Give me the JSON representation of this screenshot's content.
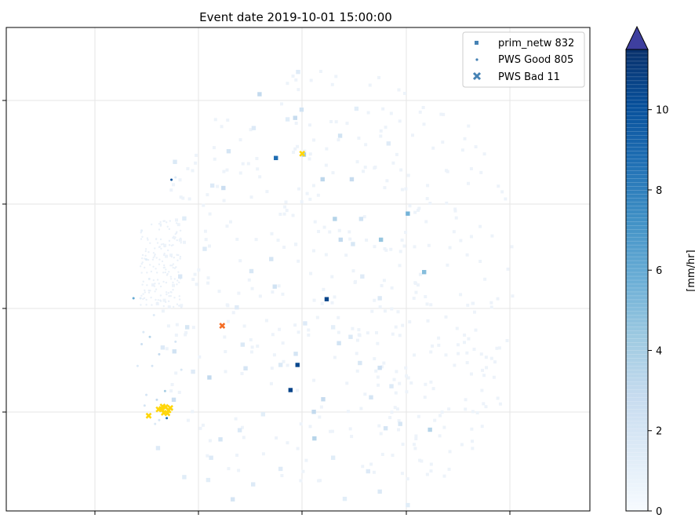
{
  "chart_data": {
    "type": "scatter",
    "title": "Event date 2019-10-01 15:00:00",
    "xlabel": "",
    "ylabel": "",
    "grid": true,
    "axis_ticks_labeled": false,
    "legend": {
      "placement": "top-right",
      "entries": [
        {
          "label": "prim_netw 832",
          "marker": "square",
          "color": "#4682b4"
        },
        {
          "label": "PWS Good 805",
          "marker": "dot",
          "color": "#4682b4"
        },
        {
          "label": "PWS Bad 11",
          "marker": "x",
          "color": "#4682b4"
        }
      ]
    },
    "colorbar": {
      "label": "[mm/hr]",
      "range": [
        0,
        11.5
      ],
      "ticks": [
        0,
        2,
        4,
        6,
        8,
        10
      ],
      "tick_labels": [
        "0",
        "2",
        "4",
        "6",
        "8",
        "10"
      ],
      "extend": "max",
      "colormap": [
        "#f7fbff",
        "#deebf7",
        "#c6dbef",
        "#9ecae1",
        "#6baed6",
        "#4292c6",
        "#2171b5",
        "#08519c",
        "#08306b"
      ],
      "over_color": "#3e3f9f"
    },
    "series": [
      {
        "name": "prim_netw 832",
        "marker": "square",
        "points": [
          [
            0.434,
            0.138,
            3.0
          ],
          [
            0.424,
            0.208,
            1.5
          ],
          [
            0.381,
            0.256,
            2.0
          ],
          [
            0.506,
            0.17,
            2.2
          ],
          [
            0.495,
            0.187,
            2.8
          ],
          [
            0.572,
            0.224,
            2.2
          ],
          [
            0.462,
            0.27,
            8.8
          ],
          [
            0.51,
            0.263,
            4.0
          ],
          [
            0.542,
            0.314,
            3.2
          ],
          [
            0.592,
            0.314,
            2.8
          ],
          [
            0.688,
            0.385,
            5.5
          ],
          [
            0.372,
            0.332,
            2.6
          ],
          [
            0.563,
            0.396,
            3.5
          ],
          [
            0.608,
            0.396,
            2.2
          ],
          [
            0.573,
            0.439,
            3.0
          ],
          [
            0.642,
            0.439,
            4.5
          ],
          [
            0.594,
            0.448,
            1.8
          ],
          [
            0.454,
            0.479,
            2.0
          ],
          [
            0.716,
            0.506,
            5.0
          ],
          [
            0.42,
            0.504,
            1.8
          ],
          [
            0.549,
            0.562,
            10.6
          ],
          [
            0.512,
            0.612,
            1.5
          ],
          [
            0.57,
            0.653,
            2.2
          ],
          [
            0.496,
            0.675,
            2.0
          ],
          [
            0.499,
            0.698,
            10.5
          ],
          [
            0.487,
            0.75,
            10.6
          ],
          [
            0.543,
            0.769,
            2.8
          ],
          [
            0.527,
            0.795,
            3.0
          ],
          [
            0.726,
            0.832,
            3.5
          ],
          [
            0.65,
            0.829,
            2.0
          ],
          [
            0.528,
            0.85,
            3.4
          ],
          [
            0.367,
            0.852,
            2.0
          ],
          [
            0.351,
            0.89,
            1.5
          ],
          [
            0.346,
            0.936,
            1.2
          ],
          [
            0.423,
            0.945,
            1.5
          ],
          [
            0.388,
            0.976,
            2.0
          ],
          [
            0.287,
            0.77,
            2.6
          ],
          [
            0.348,
            0.724,
            3.0
          ],
          [
            0.41,
            0.705,
            2.0
          ],
          [
            0.47,
            0.698,
            1.6
          ],
          [
            0.625,
            0.765,
            2.0
          ],
          [
            0.66,
            0.742,
            1.5
          ],
          [
            0.606,
            0.694,
            1.8
          ],
          [
            0.64,
            0.704,
            2.4
          ],
          [
            0.59,
            0.64,
            1.6
          ],
          [
            0.46,
            0.536,
            2.2
          ],
          [
            0.395,
            0.579,
            1.4
          ],
          [
            0.31,
            0.62,
            1.9
          ],
          [
            0.405,
            0.656,
            1.6
          ],
          [
            0.32,
            0.712,
            1.4
          ],
          [
            0.288,
            0.67,
            2.2
          ],
          [
            0.298,
            0.515,
            1.7
          ],
          [
            0.34,
            0.458,
            1.5
          ],
          [
            0.305,
            0.395,
            1.3
          ],
          [
            0.289,
            0.278,
            1.6
          ],
          [
            0.353,
            0.327,
            1.5
          ],
          [
            0.5,
            0.092,
            1.4
          ],
          [
            0.482,
            0.19,
            1.3
          ],
          [
            0.6,
            0.168,
            1.2
          ],
          [
            0.655,
            0.24,
            1.4
          ],
          [
            0.64,
            0.56,
            1.6
          ],
          [
            0.675,
            0.82,
            1.9
          ],
          [
            0.62,
            0.918,
            1.5
          ],
          [
            0.56,
            0.89,
            1.3
          ],
          [
            0.47,
            0.913,
            1.4
          ],
          [
            0.58,
            0.975,
            1.2
          ],
          [
            0.64,
            0.96,
            1.6
          ],
          [
            0.688,
            0.988,
            1.3
          ],
          [
            0.44,
            0.8,
            1.2
          ],
          [
            0.4,
            0.833,
            1.6
          ],
          [
            0.26,
            0.87,
            1.5
          ],
          [
            0.305,
            0.93,
            1.3
          ],
          [
            0.268,
            0.662,
            1.5
          ],
          [
            0.56,
            0.62,
            1.1
          ],
          [
            0.61,
            0.515,
            1.4
          ]
        ]
      },
      {
        "name": "PWS Good 805",
        "marker": "dot",
        "points": [
          [
            0.283,
            0.315,
            10.0
          ],
          [
            0.218,
            0.56,
            6.0
          ],
          [
            0.246,
            0.64,
            3.5
          ],
          [
            0.232,
            0.655,
            2.5
          ],
          [
            0.25,
            0.7,
            2.0
          ],
          [
            0.262,
            0.676,
            3.0
          ],
          [
            0.272,
            0.752,
            4.0
          ],
          [
            0.258,
            0.77,
            3.0
          ],
          [
            0.24,
            0.76,
            2.0
          ],
          [
            0.27,
            0.798,
            7.5
          ],
          [
            0.275,
            0.808,
            8.5
          ],
          [
            0.284,
            0.79,
            3.5
          ],
          [
            0.265,
            0.787,
            2.5
          ],
          [
            0.237,
            0.782,
            2.0
          ],
          [
            0.262,
            0.812,
            2.0
          ],
          [
            0.255,
            0.82,
            1.6
          ],
          [
            0.29,
            0.65,
            2.0
          ],
          [
            0.3,
            0.708,
            1.8
          ],
          [
            0.225,
            0.7,
            1.5
          ],
          [
            0.23,
            0.56,
            1.2
          ],
          [
            0.232,
            0.42,
            1.0
          ],
          [
            0.24,
            0.48,
            1.3
          ],
          [
            0.245,
            0.52,
            1.1
          ],
          [
            0.253,
            0.595,
            1.4
          ],
          [
            0.235,
            0.63,
            1.6
          ],
          [
            0.29,
            0.31,
            1.5
          ]
        ]
      },
      {
        "name": "PWS Bad 11",
        "marker": "x",
        "points": [
          [
            0.507,
            0.261,
            12
          ],
          [
            0.37,
            0.617,
            12
          ],
          [
            0.266,
            0.789,
            12
          ],
          [
            0.273,
            0.785,
            12
          ],
          [
            0.281,
            0.787,
            12
          ],
          [
            0.27,
            0.797,
            12
          ],
          [
            0.278,
            0.792,
            12
          ],
          [
            0.261,
            0.79,
            12
          ],
          [
            0.244,
            0.803,
            12
          ],
          [
            0.276,
            0.798,
            12
          ],
          [
            0.268,
            0.784,
            12
          ]
        ]
      }
    ],
    "bad_point_colors": [
      "#ffd60a",
      "#f46d25"
    ],
    "bad_point_color_index": [
      0,
      1,
      0,
      0,
      0,
      0,
      0,
      0,
      0,
      0,
      0
    ]
  }
}
